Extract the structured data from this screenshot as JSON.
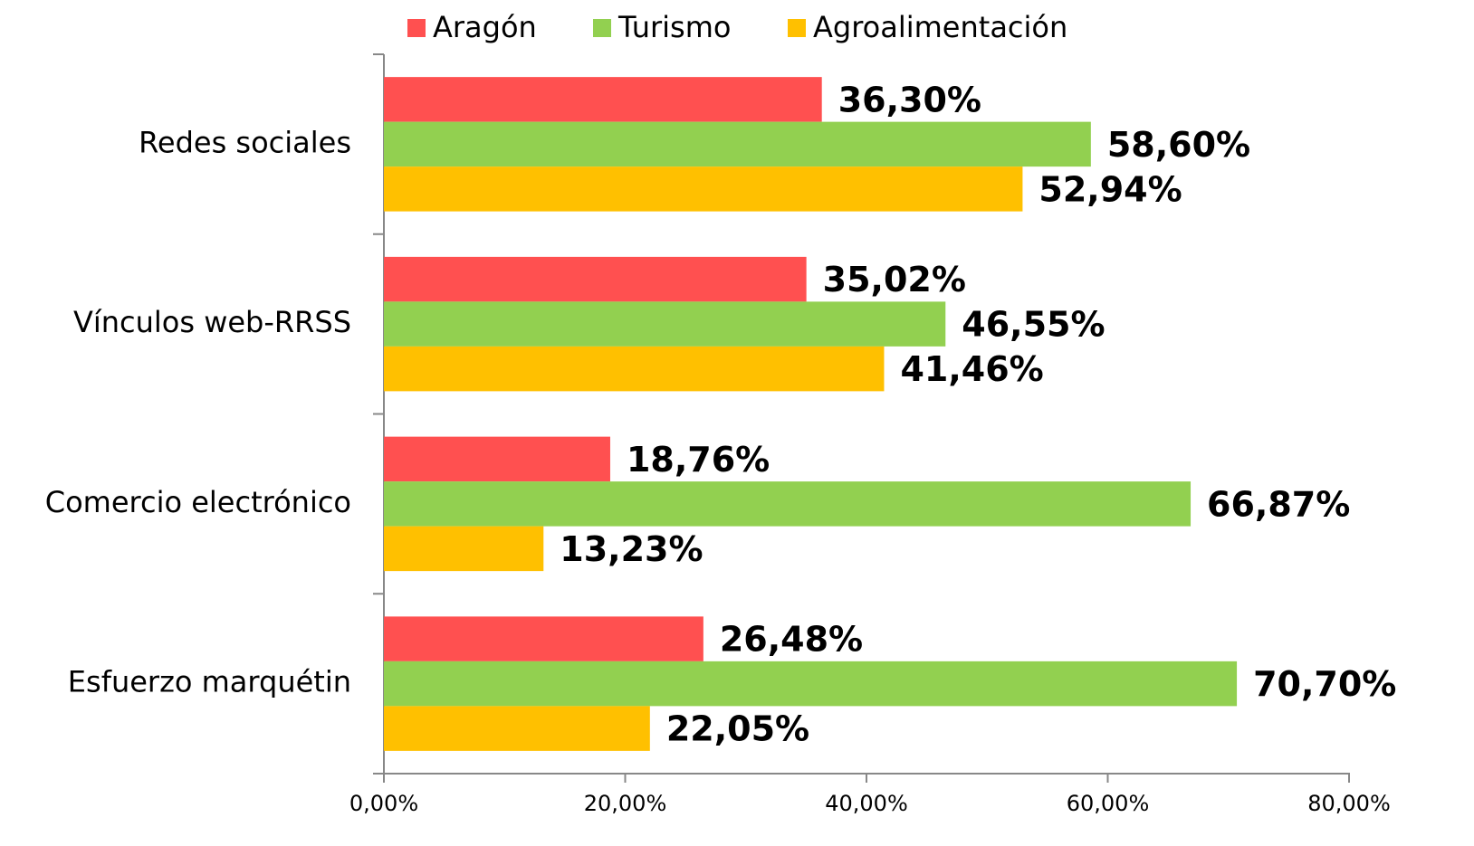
{
  "chart_data": {
    "type": "bar",
    "orientation": "horizontal",
    "categories": [
      "Redes sociales",
      "Vínculos web-RRSS",
      "Comercio electrónico",
      "Esfuerzo marquétin"
    ],
    "series": [
      {
        "name": "Aragón",
        "color": "#ff5050",
        "values": [
          36.3,
          35.02,
          18.76,
          26.48
        ],
        "value_labels": [
          "36,30%",
          "35,02%",
          "18,76%",
          "26,48%"
        ]
      },
      {
        "name": "Turismo",
        "color": "#92d050",
        "values": [
          58.6,
          46.55,
          66.87,
          70.7
        ],
        "value_labels": [
          "58,60%",
          "46,55%",
          "66,87%",
          "70,70%"
        ]
      },
      {
        "name": "Agroalimentación",
        "color": "#ffc000",
        "values": [
          52.94,
          41.46,
          13.23,
          22.05
        ],
        "value_labels": [
          "52,94%",
          "41,46%",
          "13,23%",
          "22,05%"
        ]
      }
    ],
    "xlim": [
      0,
      80
    ],
    "xticks": [
      {
        "value": 0,
        "label": "0,00%"
      },
      {
        "value": 20,
        "label": "20,00%"
      },
      {
        "value": 40,
        "label": "40,00%"
      },
      {
        "value": 60,
        "label": "60,00%"
      },
      {
        "value": 80,
        "label": "80,00%"
      }
    ],
    "legend": "top"
  }
}
